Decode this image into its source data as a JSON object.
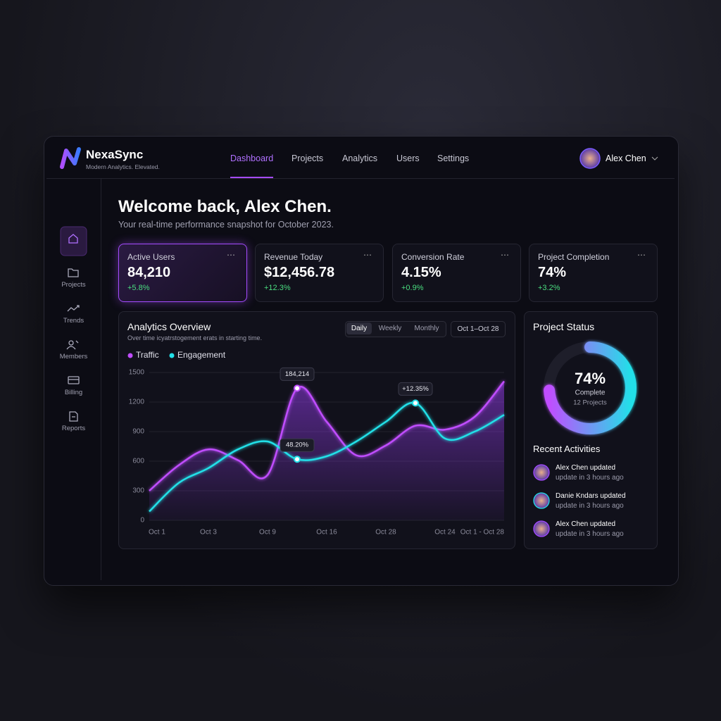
{
  "header": {
    "brand": "NexaSync",
    "tagline": "Modern Analytics. Elevated.",
    "nav": [
      "Dashboard",
      "Projects",
      "Analytics",
      "Users",
      "Settings"
    ],
    "user": "Alex Chen"
  },
  "sidebar": [
    "Home",
    "Projects",
    "Trends",
    "Members",
    "Billing",
    "Reports"
  ],
  "welcome": {
    "title": "Welcome back, Alex Chen.",
    "subtitle": "Your real-time performance snapshot for October 2023."
  },
  "kpis": [
    {
      "label": "Active Users",
      "value": "84,210",
      "change": "+5.8%"
    },
    {
      "label": "Revenue Today",
      "value": "$12,456.78",
      "change": "+12.3%"
    },
    {
      "label": "Conversion Rate",
      "value": "4.15%",
      "change": "+0.9%"
    },
    {
      "label": "Project Completion",
      "value": "74%",
      "change": "+3.2%"
    }
  ],
  "analytics": {
    "title": "Analytics Overview",
    "subtitle": "Over time icyatrstogement erats in starting time.",
    "tabs": [
      "Daily",
      "Weekly",
      "Monthly"
    ],
    "date_range": "Oct 1–Oct 28",
    "chart_data": {
      "type": "line",
      "categories": [
        "Oct 1",
        null,
        "Oct 3",
        null,
        "Oct 9",
        null,
        "Oct 16",
        null,
        "Oct 28",
        null,
        "Oct 24",
        null,
        "Oct 1 - Oct 28"
      ],
      "series": [
        {
          "name": "Traffic",
          "color": "#c04dff",
          "values": [
            300,
            560,
            720,
            610,
            460,
            1340,
            1000,
            660,
            760,
            960,
            920,
            1050,
            1410
          ]
        },
        {
          "name": "Engagement",
          "color": "#22e0e8",
          "values": [
            90,
            380,
            530,
            720,
            800,
            620,
            650,
            800,
            1000,
            1190,
            830,
            900,
            1070
          ]
        }
      ],
      "ylim": [
        0,
        1500
      ],
      "yticks": [
        0,
        300,
        600,
        900,
        1200,
        1500
      ],
      "grid": true,
      "annotations": [
        "184,214",
        "48.20%",
        "+12.35%"
      ]
    }
  },
  "project_status": {
    "title": "Project Status",
    "value": 74,
    "value_label": "74%",
    "caption": "Complete",
    "projects": "12 Projects"
  },
  "activities": {
    "title": "Recent Activities",
    "items": [
      {
        "name": "Alex Chen updated",
        "time": "update in 3 hours ago"
      },
      {
        "name": "Danie Kndars updated",
        "time": "update in 3 hours ago"
      },
      {
        "name": "Alex Chen updated",
        "time": "update in 3 hours ago"
      }
    ]
  }
}
